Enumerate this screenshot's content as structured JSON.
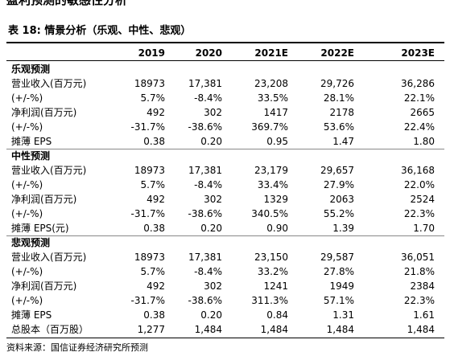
{
  "header": {
    "cut_title": "盈利预测的敏感性分析",
    "title": "表 18:  情景分析（乐观、中性、悲观）"
  },
  "table": {
    "columns": [
      "2019",
      "2020",
      "2021E",
      "2022E",
      "2023E"
    ],
    "sections": [
      {
        "title": "乐观预测",
        "rows": [
          [
            "营业收入(百万元)",
            "18973",
            "17,381",
            "23,208",
            "29,726",
            "36,286"
          ],
          [
            "(+/-%)",
            "5.7%",
            "-8.4%",
            "33.5%",
            "28.1%",
            "22.1%"
          ],
          [
            "净利润(百万元)",
            "492",
            "302",
            "1417",
            "2178",
            "2665"
          ],
          [
            "(+/-%)",
            "-31.7%",
            "-38.6%",
            "369.7%",
            "53.6%",
            "22.4%"
          ],
          [
            "摊薄 EPS",
            "0.38",
            "0.20",
            "0.95",
            "1.47",
            "1.80"
          ]
        ]
      },
      {
        "title": "中性预测",
        "rows": [
          [
            "营业收入(百万元)",
            "18973",
            "17,381",
            "23,179",
            "29,657",
            "36,168"
          ],
          [
            "(+/-%)",
            "5.7%",
            "-8.4%",
            "33.4%",
            "27.9%",
            "22.0%"
          ],
          [
            "净利润(百万元)",
            "492",
            "302",
            "1329",
            "2063",
            "2524"
          ],
          [
            "(+/-%)",
            "-31.7%",
            "-38.6%",
            "340.5%",
            "55.2%",
            "22.3%"
          ],
          [
            "摊薄 EPS(元)",
            "0.38",
            "0.20",
            "0.90",
            "1.39",
            "1.70"
          ]
        ]
      },
      {
        "title": "悲观预测",
        "rows": [
          [
            "营业收入(百万元)",
            "18973",
            "17,381",
            "23,150",
            "29,587",
            "36,051"
          ],
          [
            "(+/-%)",
            "5.7%",
            "-8.4%",
            "33.2%",
            "27.8%",
            "21.8%"
          ],
          [
            "净利润(百万元)",
            "492",
            "302",
            "1241",
            "1949",
            "2384"
          ],
          [
            "(+/-%)",
            "-31.7%",
            "-38.6%",
            "311.3%",
            "57.1%",
            "22.3%"
          ],
          [
            "摊薄 EPS",
            "0.38",
            "0.20",
            "0.84",
            "1.31",
            "1.61"
          ]
        ]
      }
    ],
    "last_row": [
      "总股本（百万股）",
      "1,277",
      "1,484",
      "1,484",
      "1,484",
      "1,484"
    ]
  },
  "footer": {
    "source": "资料来源：国信证券经济研究所预测"
  }
}
